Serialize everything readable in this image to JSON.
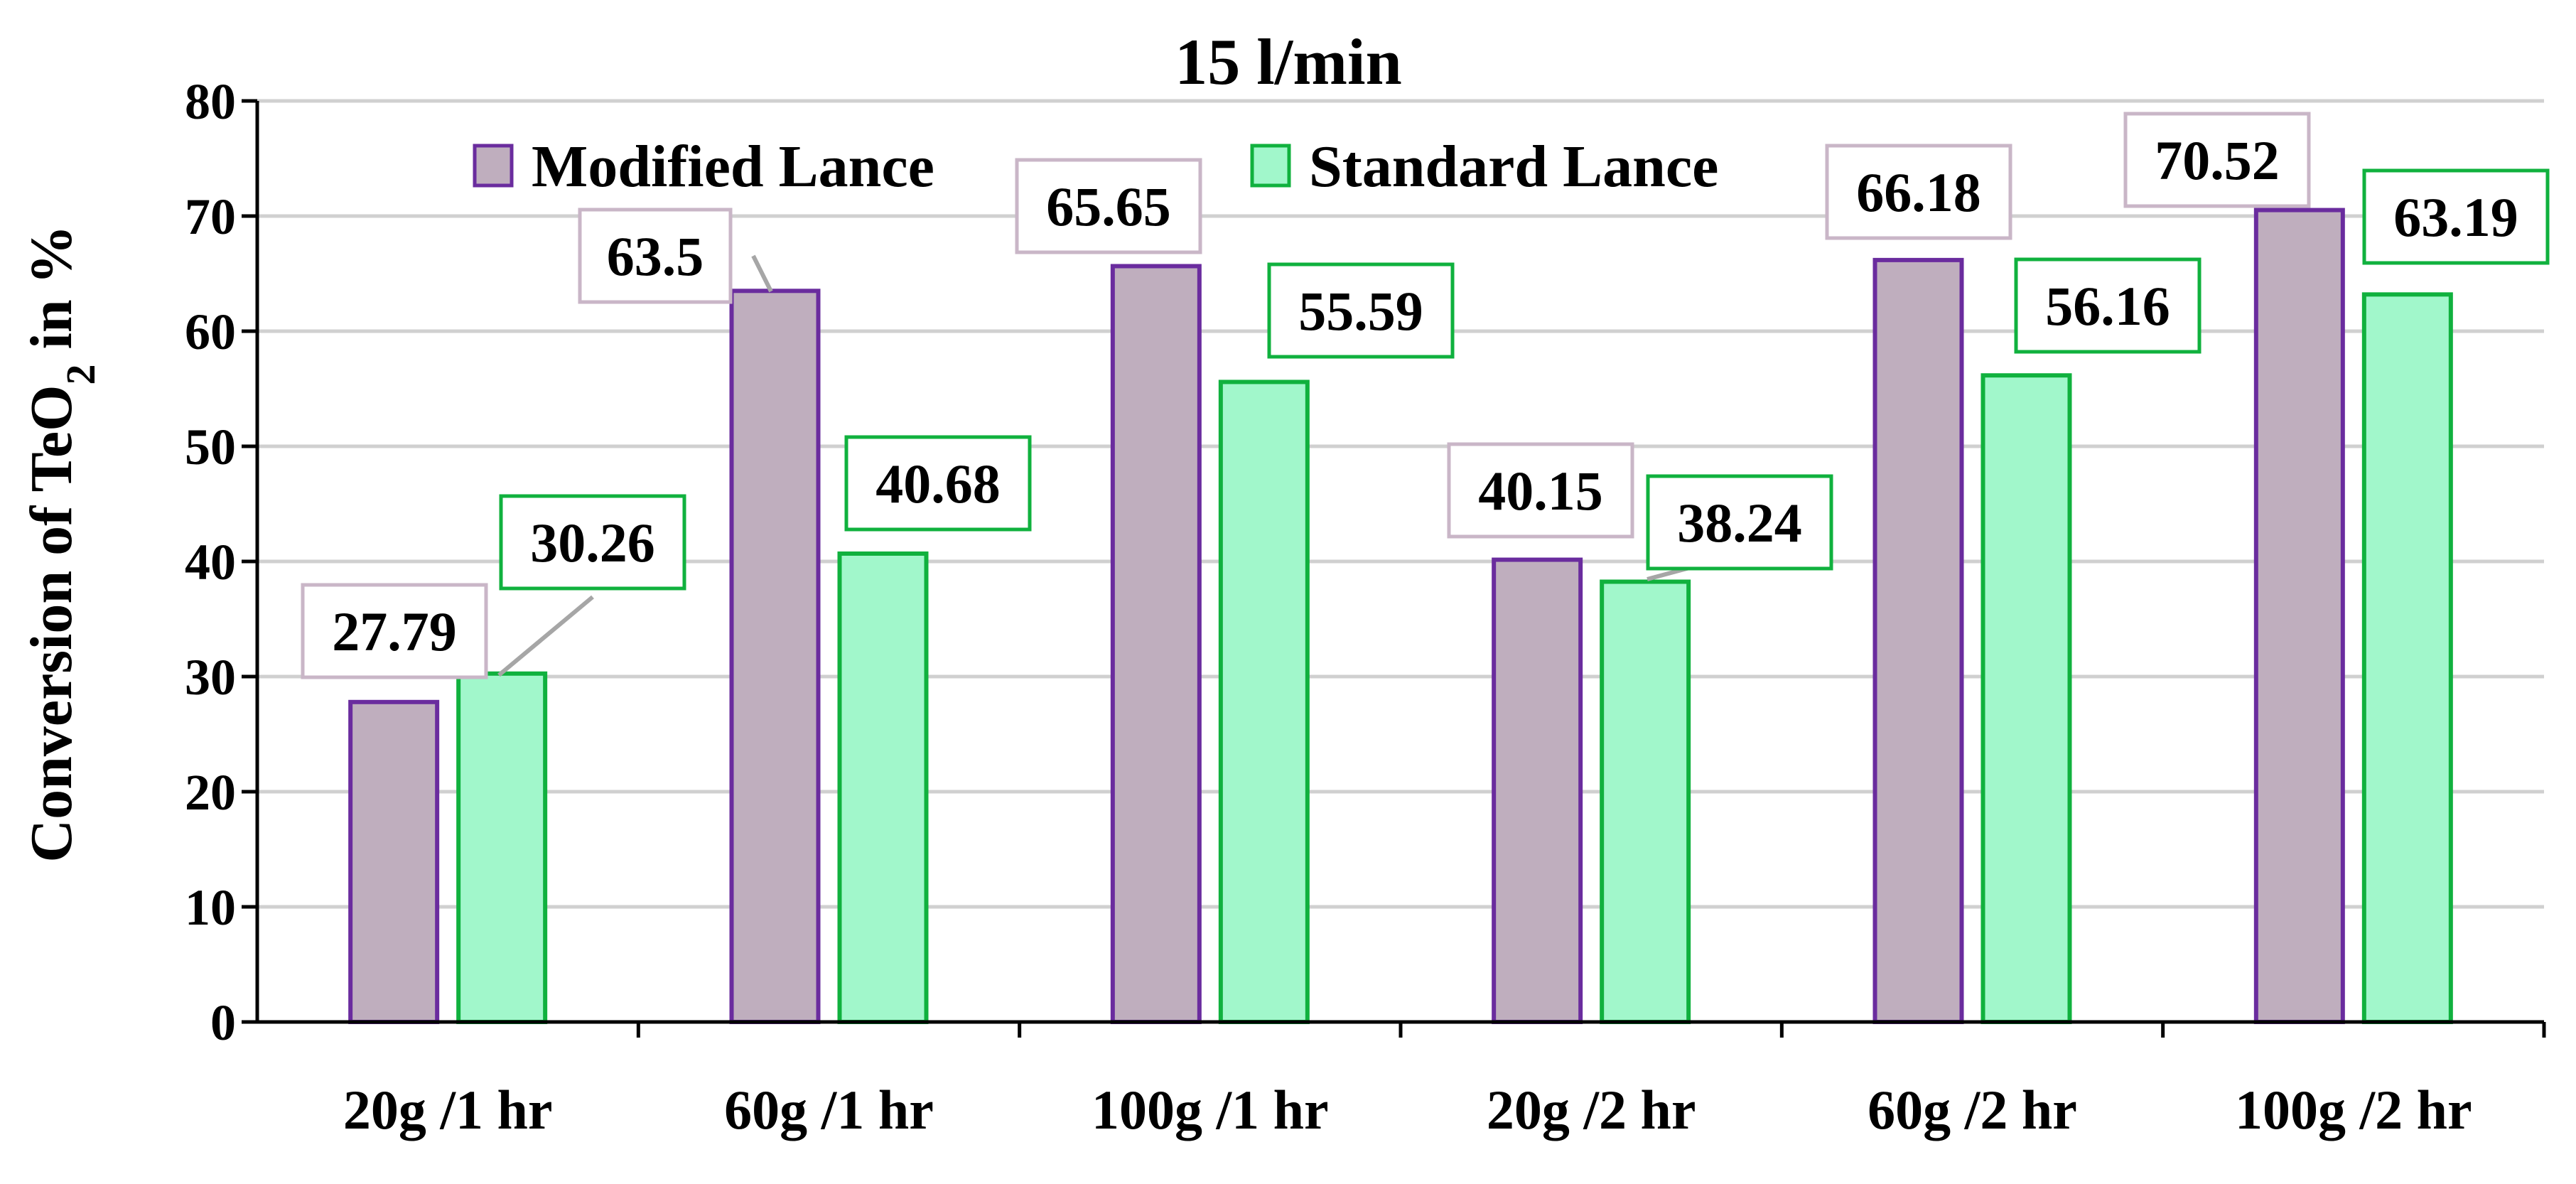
{
  "chart_data": {
    "type": "bar",
    "title": "15 l/min",
    "ylabel": "Conversion of TeO",
    "ylabel_subscript": "2",
    "ylabel_suffix": " in %",
    "xlabel": "",
    "ylim": [
      0,
      80
    ],
    "yticks": [
      "0",
      "10",
      "20",
      "30",
      "40",
      "50",
      "60",
      "70",
      "80"
    ],
    "categories": [
      "20g /1 hr",
      "60g /1 hr",
      "100g /1 hr",
      "20g /2 hr",
      "60g /2 hr",
      "100g /2 hr"
    ],
    "series": [
      {
        "name": "Modified Lance",
        "values": [
          27.79,
          63.5,
          65.65,
          40.15,
          66.18,
          70.52
        ],
        "labels": [
          "27.79",
          "63.5",
          "65.65",
          "40.15",
          "66.18",
          "70.52"
        ],
        "fill": "#bfaebe",
        "stroke": "#6a2c9e",
        "label_border": "#c9b6c7"
      },
      {
        "name": "Standard Lance",
        "values": [
          30.26,
          40.68,
          55.59,
          38.24,
          56.16,
          63.19
        ],
        "labels": [
          "30.26",
          "40.68",
          "55.59",
          "38.24",
          "56.16",
          "63.19"
        ],
        "fill": "#a1f7cb",
        "stroke": "#10b13e",
        "label_border": "#10b13e"
      }
    ],
    "grid": true,
    "legend": "top-left"
  }
}
